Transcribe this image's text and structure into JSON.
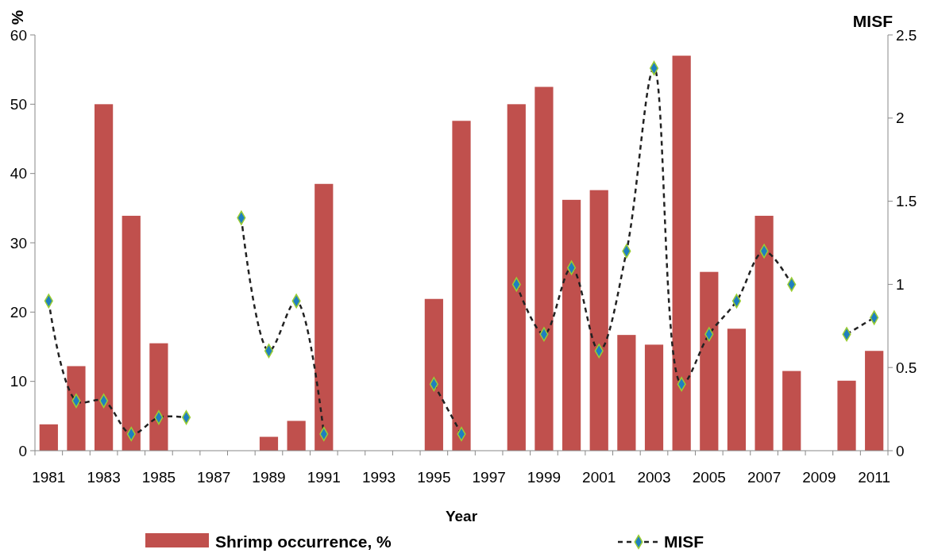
{
  "chart_data": {
    "type": "bar",
    "xlabel": "Year",
    "ylabel": "%",
    "y2label": "MISF",
    "categories": [
      "1981",
      null,
      "1983",
      null,
      "1985",
      null,
      "1987",
      null,
      "1989",
      null,
      "1991",
      null,
      "1993",
      null,
      "1995",
      null,
      "1997",
      null,
      "1999",
      null,
      "2001",
      null,
      "2003",
      null,
      "2005",
      null,
      "2007",
      null,
      "2009",
      null,
      "2011"
    ],
    "series": [
      {
        "name": "Shrimp occurrence, %",
        "color": "#c0504d",
        "values": [
          3.8,
          12.2,
          50,
          33.9,
          15.5,
          null,
          null,
          null,
          2,
          4.3,
          38.5,
          null,
          null,
          null,
          21.9,
          47.6,
          null,
          50,
          52.5,
          36.2,
          37.6,
          16.7,
          15.3,
          57,
          25.8,
          17.6,
          33.9,
          11.5,
          null,
          10.1,
          14.4
        ]
      },
      {
        "name": "MISF",
        "type": "line",
        "axis": "y2",
        "color": "#1f7fc0",
        "marker": "diamond",
        "line_style": "dashed",
        "values": [
          0.9,
          0.3,
          0.3,
          0.1,
          0.2,
          0.2,
          null,
          1.4,
          0.6,
          0.9,
          0.1,
          null,
          null,
          null,
          0.4,
          0.1,
          null,
          1.0,
          0.7,
          1.1,
          0.6,
          1.2,
          2.3,
          0.4,
          0.7,
          0.9,
          1.2,
          1.0,
          null,
          0.7,
          0.8
        ]
      }
    ],
    "ylim": [
      0,
      60
    ],
    "yticks": [
      0,
      10,
      20,
      30,
      40,
      50,
      60
    ],
    "y2lim": [
      0,
      2.5
    ],
    "y2ticks": [
      0,
      0.5,
      1,
      1.5,
      2,
      2.5
    ],
    "legend": "bottom"
  }
}
